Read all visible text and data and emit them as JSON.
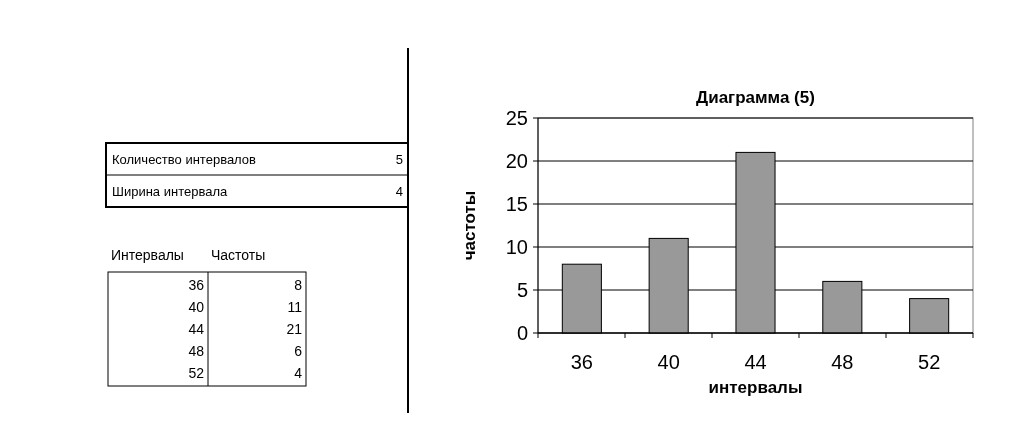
{
  "chart_data": {
    "type": "bar",
    "title": "Диаграмма (5)",
    "xlabel": "интервалы",
    "ylabel": "частоты",
    "categories": [
      "36",
      "40",
      "44",
      "48",
      "52"
    ],
    "values": [
      8,
      11,
      21,
      6,
      4
    ],
    "color": "#999999",
    "ylim": [
      0,
      25
    ],
    "yticks": [
      0,
      5,
      10,
      15,
      20,
      25
    ],
    "grid": "y",
    "annotations": [
      "Количество интервалов",
      "5",
      "Ширина интервала",
      "4",
      "Интервалы",
      "Частоты",
      "36",
      "8",
      "40",
      "11",
      "44",
      "21",
      "48",
      "6",
      "52",
      "4"
    ]
  }
}
